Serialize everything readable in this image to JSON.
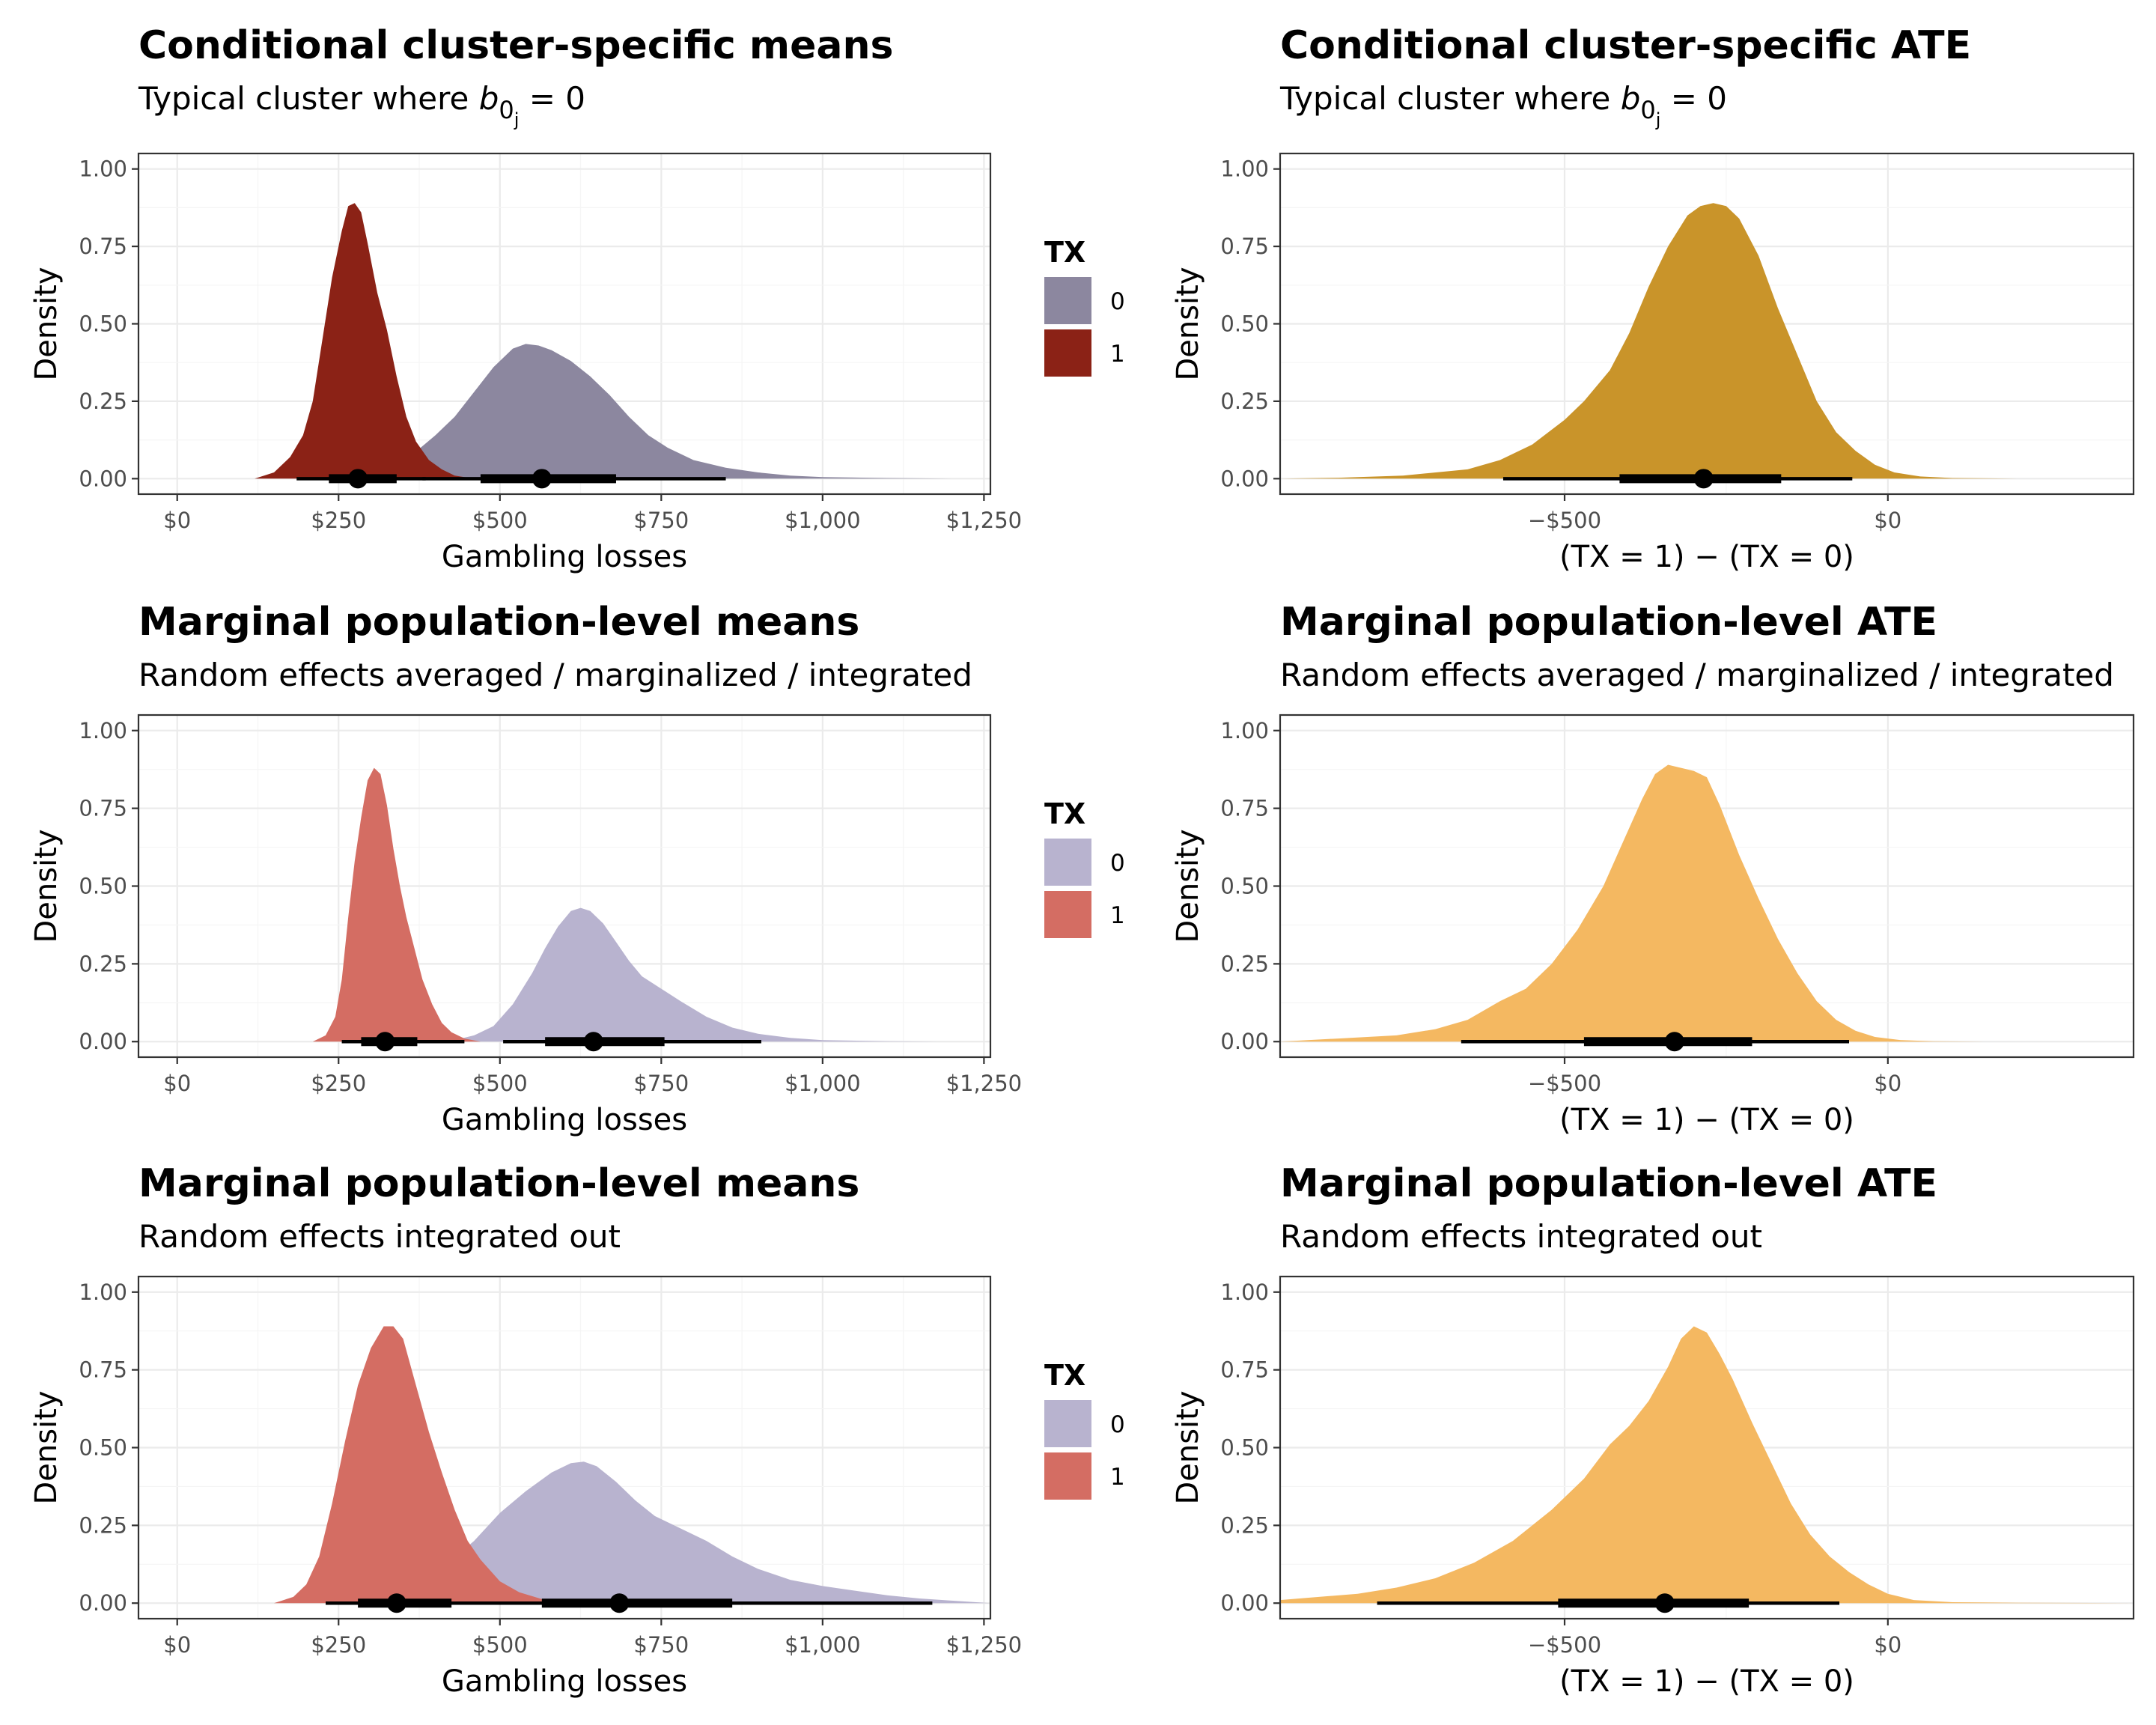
{
  "chart_data": [
    {
      "type": "area",
      "title": "Conditional cluster-specific means",
      "subtitle": {
        "prefix": "Typical cluster where ",
        "var": "b",
        "sub1": "0",
        "sub2": "j",
        "suffix": " = 0"
      },
      "xlabel": "Gambling losses",
      "ylabel": "Density",
      "xlim": [
        -60,
        1260
      ],
      "ylim": [
        -0.05,
        1.05
      ],
      "xticks": [
        0,
        250,
        500,
        750,
        1000,
        1250
      ],
      "xticklabels": [
        "$0",
        "$250",
        "$500",
        "$750",
        "$1,000",
        "$1,250"
      ],
      "yticks": [
        0,
        0.25,
        0.5,
        0.75,
        1
      ],
      "yticklabels": [
        "0.00",
        "0.25",
        "0.50",
        "0.75",
        "1.00"
      ],
      "legend": {
        "title": "TX",
        "position": "right"
      },
      "series": [
        {
          "name": "0",
          "color": "#8c879f",
          "x": [
            300,
            330,
            360,
            400,
            430,
            460,
            490,
            520,
            540,
            560,
            580,
            610,
            640,
            670,
            700,
            730,
            760,
            800,
            850,
            900,
            950,
            1000,
            1100,
            1200
          ],
          "y": [
            0,
            0.03,
            0.07,
            0.14,
            0.2,
            0.28,
            0.36,
            0.42,
            0.435,
            0.43,
            0.415,
            0.38,
            0.33,
            0.27,
            0.2,
            0.14,
            0.1,
            0.06,
            0.035,
            0.02,
            0.01,
            0.005,
            0.002,
            0
          ],
          "interval": {
            "point": 565,
            "inner": [
              470,
              680
            ],
            "outer": [
              380,
              850
            ]
          }
        },
        {
          "name": "1",
          "color": "#8b2216",
          "x": [
            120,
            150,
            175,
            195,
            210,
            225,
            240,
            255,
            265,
            275,
            285,
            295,
            310,
            325,
            340,
            355,
            370,
            390,
            410,
            430,
            460
          ],
          "y": [
            0,
            0.02,
            0.07,
            0.14,
            0.25,
            0.45,
            0.65,
            0.8,
            0.88,
            0.89,
            0.86,
            0.76,
            0.6,
            0.48,
            0.33,
            0.2,
            0.12,
            0.06,
            0.03,
            0.01,
            0
          ],
          "interval": {
            "point": 280,
            "inner": [
              235,
              340
            ],
            "outer": [
              185,
              385
            ]
          }
        }
      ]
    },
    {
      "type": "area",
      "title": "Conditional cluster-specific ATE",
      "subtitle": {
        "prefix": "Typical cluster where ",
        "var": "b",
        "sub1": "0",
        "sub2": "j",
        "suffix": " = 0"
      },
      "xlabel": "(TX = 1) − (TX = 0)",
      "ylabel": "Density",
      "xlim": [
        -940,
        380
      ],
      "ylim": [
        -0.05,
        1.05
      ],
      "xticks": [
        -500,
        0
      ],
      "xticklabels": [
        "−$500",
        "$0"
      ],
      "yticks": [
        0,
        0.25,
        0.5,
        0.75,
        1
      ],
      "yticklabels": [
        "0.00",
        "0.25",
        "0.50",
        "0.75",
        "1.00"
      ],
      "series": [
        {
          "name": "",
          "color": "#c9942a",
          "x": [
            -940,
            -850,
            -750,
            -650,
            -600,
            -550,
            -500,
            -470,
            -430,
            -400,
            -370,
            -340,
            -310,
            -290,
            -270,
            -250,
            -230,
            -200,
            -170,
            -140,
            -110,
            -80,
            -50,
            -20,
            10,
            50,
            100,
            200
          ],
          "y": [
            0,
            0.003,
            0.01,
            0.03,
            0.06,
            0.11,
            0.19,
            0.25,
            0.35,
            0.47,
            0.62,
            0.75,
            0.85,
            0.88,
            0.89,
            0.88,
            0.84,
            0.72,
            0.55,
            0.4,
            0.25,
            0.15,
            0.09,
            0.045,
            0.02,
            0.007,
            0.002,
            0
          ],
          "interval": {
            "point": -285,
            "inner": [
              -415,
              -165
            ],
            "outer": [
              -595,
              -55
            ]
          }
        }
      ]
    },
    {
      "type": "area",
      "title": "Marginal population-level means",
      "subtitle": {
        "prefix": "Random effects averaged / marginalized / integrated"
      },
      "xlabel": "Gambling losses",
      "ylabel": "Density",
      "xlim": [
        -60,
        1260
      ],
      "ylim": [
        -0.05,
        1.05
      ],
      "xticks": [
        0,
        250,
        500,
        750,
        1000,
        1250
      ],
      "xticklabels": [
        "$0",
        "$250",
        "$500",
        "$750",
        "$1,000",
        "$1,250"
      ],
      "yticks": [
        0,
        0.25,
        0.5,
        0.75,
        1
      ],
      "yticklabels": [
        "0.00",
        "0.25",
        "0.50",
        "0.75",
        "1.00"
      ],
      "legend": {
        "title": "TX",
        "position": "right"
      },
      "series": [
        {
          "name": "0",
          "color": "#b8b3cf",
          "x": [
            420,
            460,
            490,
            520,
            550,
            570,
            590,
            610,
            625,
            640,
            660,
            680,
            700,
            720,
            750,
            780,
            820,
            860,
            900,
            950,
            1000,
            1100,
            1180
          ],
          "y": [
            0,
            0.02,
            0.05,
            0.12,
            0.22,
            0.3,
            0.37,
            0.42,
            0.43,
            0.42,
            0.38,
            0.32,
            0.26,
            0.21,
            0.17,
            0.13,
            0.08,
            0.045,
            0.025,
            0.012,
            0.005,
            0.001,
            0
          ],
          "interval": {
            "point": 645,
            "inner": [
              570,
              755
            ],
            "outer": [
              505,
              905
            ]
          }
        },
        {
          "name": "1",
          "color": "#d46d63",
          "x": [
            210,
            230,
            245,
            255,
            265,
            275,
            285,
            295,
            305,
            315,
            325,
            335,
            345,
            355,
            365,
            380,
            395,
            410,
            425,
            445,
            470
          ],
          "y": [
            0,
            0.02,
            0.08,
            0.2,
            0.4,
            0.58,
            0.72,
            0.84,
            0.88,
            0.86,
            0.76,
            0.62,
            0.5,
            0.4,
            0.32,
            0.2,
            0.12,
            0.06,
            0.03,
            0.01,
            0
          ],
          "interval": {
            "point": 322,
            "inner": [
              285,
              372
            ],
            "outer": [
              255,
              445
            ]
          }
        }
      ]
    },
    {
      "type": "area",
      "title": "Marginal population-level ATE",
      "subtitle": {
        "prefix": "Random effects averaged / marginalized / integrated"
      },
      "xlabel": "(TX = 1) − (TX = 0)",
      "ylabel": "Density",
      "xlim": [
        -940,
        380
      ],
      "ylim": [
        -0.05,
        1.05
      ],
      "xticks": [
        -500,
        0
      ],
      "xticklabels": [
        "−$500",
        "$0"
      ],
      "yticks": [
        0,
        0.25,
        0.5,
        0.75,
        1
      ],
      "yticklabels": [
        "0.00",
        "0.25",
        "0.50",
        "0.75",
        "1.00"
      ],
      "series": [
        {
          "name": "",
          "color": "#f4b861",
          "x": [
            -940,
            -850,
            -760,
            -700,
            -650,
            -600,
            -560,
            -520,
            -480,
            -440,
            -410,
            -380,
            -360,
            -340,
            -320,
            -300,
            -280,
            -260,
            -230,
            -200,
            -170,
            -140,
            -110,
            -80,
            -50,
            -20,
            20,
            70,
            150,
            200
          ],
          "y": [
            0,
            0.01,
            0.02,
            0.04,
            0.07,
            0.13,
            0.17,
            0.25,
            0.36,
            0.5,
            0.64,
            0.78,
            0.86,
            0.89,
            0.88,
            0.87,
            0.85,
            0.76,
            0.6,
            0.46,
            0.33,
            0.22,
            0.13,
            0.07,
            0.035,
            0.015,
            0.005,
            0.001,
            0,
            0
          ],
          "interval": {
            "point": -330,
            "inner": [
              -470,
              -210
            ],
            "outer": [
              -660,
              -60
            ]
          }
        }
      ]
    },
    {
      "type": "area",
      "title": "Marginal population-level means",
      "subtitle": {
        "prefix": "Random effects integrated out"
      },
      "xlabel": "Gambling losses",
      "ylabel": "Density",
      "xlim": [
        -60,
        1260
      ],
      "ylim": [
        -0.05,
        1.05
      ],
      "xticks": [
        0,
        250,
        500,
        750,
        1000,
        1250
      ],
      "xticklabels": [
        "$0",
        "$250",
        "$500",
        "$750",
        "$1,000",
        "$1,250"
      ],
      "yticks": [
        0,
        0.25,
        0.5,
        0.75,
        1
      ],
      "yticklabels": [
        "0.00",
        "0.25",
        "0.50",
        "0.75",
        "1.00"
      ],
      "legend": {
        "title": "TX",
        "position": "right"
      },
      "series": [
        {
          "name": "0",
          "color": "#b8b3cf",
          "x": [
            320,
            350,
            380,
            420,
            460,
            500,
            540,
            580,
            610,
            630,
            650,
            680,
            710,
            740,
            780,
            820,
            860,
            900,
            950,
            1000,
            1050,
            1100,
            1150,
            1200,
            1260
          ],
          "y": [
            0,
            0.02,
            0.06,
            0.13,
            0.2,
            0.29,
            0.36,
            0.42,
            0.45,
            0.455,
            0.44,
            0.39,
            0.33,
            0.28,
            0.24,
            0.2,
            0.15,
            0.11,
            0.075,
            0.055,
            0.04,
            0.025,
            0.015,
            0.008,
            0
          ],
          "interval": {
            "point": 685,
            "inner": [
              565,
              860
            ],
            "outer": [
              465,
              1170
            ]
          }
        },
        {
          "name": "1",
          "color": "#d46d63",
          "x": [
            150,
            180,
            200,
            220,
            240,
            260,
            280,
            300,
            320,
            335,
            350,
            370,
            390,
            410,
            430,
            450,
            470,
            500,
            530,
            570,
            620
          ],
          "y": [
            0,
            0.02,
            0.06,
            0.15,
            0.32,
            0.52,
            0.7,
            0.82,
            0.89,
            0.89,
            0.85,
            0.7,
            0.55,
            0.42,
            0.3,
            0.2,
            0.14,
            0.07,
            0.035,
            0.01,
            0
          ],
          "interval": {
            "point": 340,
            "inner": [
              280,
              425
            ],
            "outer": [
              230,
              560
            ]
          }
        }
      ]
    },
    {
      "type": "area",
      "title": "Marginal population-level ATE",
      "subtitle": {
        "prefix": "Random effects integrated out"
      },
      "xlabel": "(TX = 1) − (TX = 0)",
      "ylabel": "Density",
      "xlim": [
        -940,
        380
      ],
      "ylim": [
        -0.05,
        1.05
      ],
      "xticks": [
        -500,
        0
      ],
      "xticklabels": [
        "−$500",
        "$0"
      ],
      "yticks": [
        0,
        0.25,
        0.5,
        0.75,
        1
      ],
      "yticklabels": [
        "0.00",
        "0.25",
        "0.50",
        "0.75",
        "1.00"
      ],
      "series": [
        {
          "name": "",
          "color": "#f4b861",
          "x": [
            -940,
            -880,
            -820,
            -760,
            -700,
            -640,
            -580,
            -520,
            -470,
            -430,
            -400,
            -370,
            -340,
            -320,
            -300,
            -280,
            -260,
            -240,
            -210,
            -180,
            -150,
            -120,
            -90,
            -60,
            -30,
            0,
            40,
            100,
            200,
            380
          ],
          "y": [
            0.01,
            0.02,
            0.03,
            0.05,
            0.08,
            0.13,
            0.2,
            0.3,
            0.4,
            0.51,
            0.57,
            0.65,
            0.76,
            0.85,
            0.89,
            0.87,
            0.8,
            0.72,
            0.58,
            0.45,
            0.32,
            0.22,
            0.15,
            0.1,
            0.06,
            0.03,
            0.01,
            0.003,
            0.001,
            0
          ],
          "interval": {
            "point": -345,
            "inner": [
              -510,
              -215
            ],
            "outer": [
              -790,
              -75
            ]
          }
        }
      ]
    }
  ]
}
